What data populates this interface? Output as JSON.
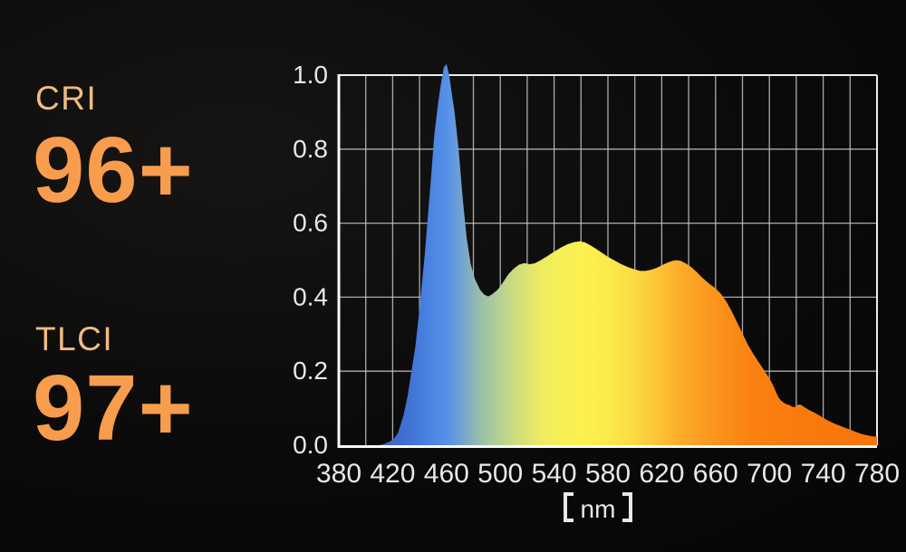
{
  "ratings": {
    "cri": {
      "label": "CRI",
      "value": "96+"
    },
    "tlci": {
      "label": "TLCI",
      "value": "97+"
    },
    "value_color": "#f89c4d",
    "label_color": "#f2bb82"
  },
  "chart_data": {
    "type": "area",
    "title": "",
    "xlabel": "【nm】",
    "ylabel": "",
    "xlim": [
      380,
      780
    ],
    "ylim": [
      0,
      1
    ],
    "x_ticks": [
      380,
      420,
      460,
      500,
      540,
      580,
      620,
      660,
      700,
      740,
      780
    ],
    "y_ticks": [
      "1.0",
      "0.8",
      "0.6",
      "0.4",
      "0.2",
      "0.0"
    ],
    "grid": {
      "on": true,
      "x_step": 20,
      "y_step": 0.2
    },
    "axis_text_color": "#e8e8e8",
    "grid_color": "#c7c7c7",
    "frame_color": "#fafafa",
    "series": [
      {
        "name": "spectral-power-distribution",
        "points": [
          [
            380,
            0
          ],
          [
            410,
            0
          ],
          [
            414,
            0.004
          ],
          [
            418,
            0.01
          ],
          [
            421,
            0.018
          ],
          [
            424,
            0.033
          ],
          [
            428,
            0.08
          ],
          [
            431,
            0.13
          ],
          [
            434,
            0.2
          ],
          [
            437,
            0.27
          ],
          [
            440,
            0.37
          ],
          [
            444,
            0.52
          ],
          [
            448,
            0.7
          ],
          [
            451,
            0.84
          ],
          [
            454,
            0.93
          ],
          [
            456,
            0.98
          ],
          [
            458,
            1.02
          ],
          [
            460,
            1.03
          ],
          [
            462,
            1.0
          ],
          [
            464,
            0.95
          ],
          [
            466,
            0.9
          ],
          [
            469,
            0.8
          ],
          [
            472,
            0.67
          ],
          [
            475,
            0.56
          ],
          [
            478,
            0.49
          ],
          [
            481,
            0.45
          ],
          [
            485,
            0.42
          ],
          [
            488,
            0.407
          ],
          [
            491,
            0.402
          ],
          [
            494,
            0.408
          ],
          [
            498,
            0.42
          ],
          [
            502,
            0.44
          ],
          [
            506,
            0.462
          ],
          [
            510,
            0.477
          ],
          [
            514,
            0.488
          ],
          [
            518,
            0.492
          ],
          [
            522,
            0.489
          ],
          [
            526,
            0.492
          ],
          [
            530,
            0.5
          ],
          [
            535,
            0.511
          ],
          [
            540,
            0.523
          ],
          [
            545,
            0.534
          ],
          [
            550,
            0.543
          ],
          [
            555,
            0.549
          ],
          [
            559,
            0.551
          ],
          [
            563,
            0.548
          ],
          [
            567,
            0.54
          ],
          [
            571,
            0.531
          ],
          [
            575,
            0.521
          ],
          [
            580,
            0.509
          ],
          [
            585,
            0.499
          ],
          [
            590,
            0.489
          ],
          [
            595,
            0.481
          ],
          [
            600,
            0.475
          ],
          [
            604,
            0.471
          ],
          [
            608,
            0.471
          ],
          [
            612,
            0.474
          ],
          [
            616,
            0.479
          ],
          [
            620,
            0.486
          ],
          [
            624,
            0.493
          ],
          [
            628,
            0.498
          ],
          [
            631,
            0.5
          ],
          [
            634,
            0.498
          ],
          [
            638,
            0.491
          ],
          [
            642,
            0.481
          ],
          [
            646,
            0.468
          ],
          [
            650,
            0.453
          ],
          [
            655,
            0.437
          ],
          [
            660,
            0.424
          ],
          [
            664,
            0.409
          ],
          [
            668,
            0.388
          ],
          [
            672,
            0.362
          ],
          [
            676,
            0.332
          ],
          [
            680,
            0.302
          ],
          [
            684,
            0.272
          ],
          [
            688,
            0.247
          ],
          [
            692,
            0.225
          ],
          [
            696,
            0.203
          ],
          [
            700,
            0.181
          ],
          [
            703,
            0.16
          ],
          [
            705,
            0.143
          ],
          [
            707,
            0.128
          ],
          [
            709,
            0.119
          ],
          [
            712,
            0.112
          ],
          [
            715,
            0.108
          ],
          [
            717,
            0.104
          ],
          [
            719,
            0.103
          ],
          [
            721,
            0.109
          ],
          [
            723,
            0.11
          ],
          [
            726,
            0.103
          ],
          [
            729,
            0.096
          ],
          [
            733,
            0.089
          ],
          [
            737,
            0.081
          ],
          [
            741,
            0.072
          ],
          [
            745,
            0.064
          ],
          [
            750,
            0.056
          ],
          [
            755,
            0.049
          ],
          [
            760,
            0.042
          ],
          [
            765,
            0.035
          ],
          [
            770,
            0.029
          ],
          [
            774,
            0.026
          ],
          [
            777,
            0.024
          ],
          [
            780,
            0.023
          ]
        ]
      }
    ],
    "gradient_stops": [
      [
        405,
        "#3a5fb8"
      ],
      [
        430,
        "#3f70d2"
      ],
      [
        448,
        "#4a84e2"
      ],
      [
        460,
        "#5490e8"
      ],
      [
        472,
        "#76a4cf"
      ],
      [
        485,
        "#98beab"
      ],
      [
        500,
        "#b7d192"
      ],
      [
        515,
        "#d6e079"
      ],
      [
        530,
        "#eceb62"
      ],
      [
        545,
        "#f6f056"
      ],
      [
        562,
        "#fbf14e"
      ],
      [
        582,
        "#fbe94b"
      ],
      [
        600,
        "#fbd943"
      ],
      [
        615,
        "#fcc737"
      ],
      [
        630,
        "#fcb12d"
      ],
      [
        648,
        "#fb9f22"
      ],
      [
        665,
        "#fb901b"
      ],
      [
        685,
        "#fa8313"
      ],
      [
        710,
        "#fa7c0e"
      ],
      [
        780,
        "#f8740a"
      ]
    ]
  }
}
